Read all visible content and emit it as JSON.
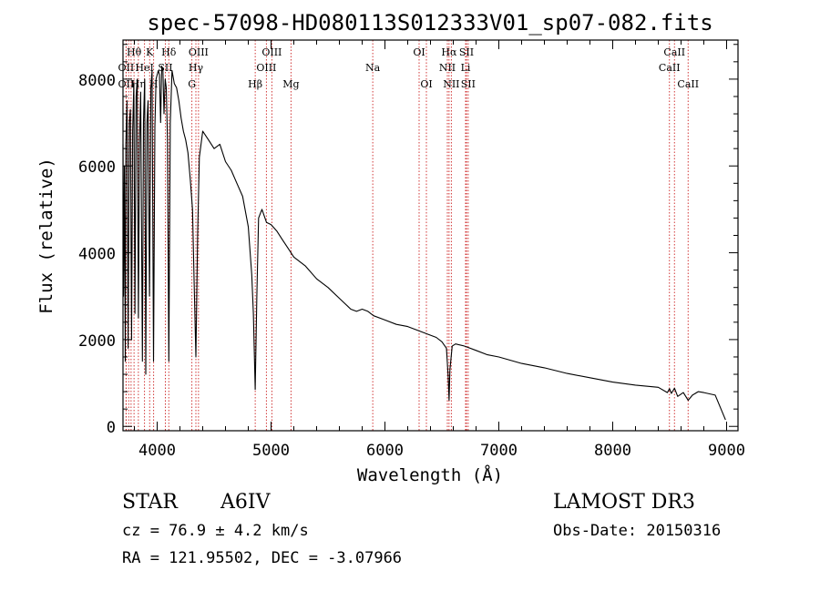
{
  "chart_data": {
    "type": "line",
    "title": "spec-57098-HD080113S012333V01_sp07-082.fits",
    "xlabel": "Wavelength (Å)",
    "ylabel": "Flux (relative)",
    "xlim": [
      3700,
      9100
    ],
    "ylim": [
      -100,
      8900
    ],
    "xticks": [
      4000,
      5000,
      6000,
      7000,
      8000,
      9000
    ],
    "yticks": [
      0,
      2000,
      4000,
      6000,
      8000
    ],
    "series": [
      {
        "name": "Flux",
        "x": [
          3700,
          3705,
          3712,
          3720,
          3725,
          3735,
          3745,
          3755,
          3765,
          3775,
          3785,
          3795,
          3805,
          3815,
          3825,
          3835,
          3845,
          3855,
          3870,
          3880,
          3890,
          3900,
          3910,
          3920,
          3933,
          3945,
          3955,
          3968,
          3980,
          3990,
          4000,
          4010,
          4020,
          4030,
          4040,
          4050,
          4060,
          4070,
          4080,
          4090,
          4102,
          4115,
          4130,
          4150,
          4170,
          4190,
          4210,
          4230,
          4250,
          4270,
          4290,
          4310,
          4325,
          4340,
          4355,
          4370,
          4400,
          4450,
          4500,
          4550,
          4600,
          4650,
          4700,
          4750,
          4800,
          4830,
          4845,
          4861,
          4875,
          4890,
          4920,
          4960,
          5000,
          5050,
          5100,
          5150,
          5200,
          5300,
          5400,
          5500,
          5600,
          5700,
          5750,
          5800,
          5850,
          5900,
          6000,
          6100,
          6200,
          6300,
          6400,
          6450,
          6500,
          6540,
          6555,
          6563,
          6570,
          6590,
          6620,
          6700,
          6800,
          6900,
          7000,
          7200,
          7400,
          7600,
          7800,
          8000,
          8200,
          8400,
          8480,
          8498,
          8515,
          8542,
          8570,
          8620,
          8662,
          8700,
          8750,
          8800,
          8900,
          8990
        ],
        "y": [
          6500,
          3000,
          6000,
          1500,
          6500,
          7500,
          1800,
          7000,
          7300,
          2000,
          6800,
          7900,
          2600,
          7600,
          8000,
          2500,
          6500,
          7700,
          1500,
          7000,
          8000,
          1200,
          7000,
          7500,
          3000,
          7800,
          8200,
          1500,
          6900,
          8000,
          8100,
          8200,
          8100,
          7000,
          8300,
          8200,
          7200,
          8000,
          7800,
          6600,
          1500,
          7000,
          8200,
          7900,
          7800,
          7500,
          7100,
          6800,
          6600,
          6300,
          5700,
          5000,
          3300,
          1600,
          4400,
          6200,
          6800,
          6600,
          6400,
          6500,
          6100,
          5900,
          5600,
          5300,
          4600,
          3500,
          2600,
          850,
          3000,
          4800,
          5000,
          4700,
          4650,
          4500,
          4300,
          4100,
          3900,
          3700,
          3400,
          3200,
          2950,
          2700,
          2650,
          2700,
          2650,
          2550,
          2450,
          2350,
          2300,
          2200,
          2100,
          2050,
          1950,
          1800,
          1150,
          600,
          1300,
          1850,
          1900,
          1850,
          1750,
          1650,
          1600,
          1450,
          1350,
          1220,
          1120,
          1020,
          950,
          900,
          780,
          870,
          760,
          880,
          690,
          780,
          600,
          720,
          800,
          780,
          720,
          150
        ]
      }
    ],
    "spectral_lines": [
      {
        "label": "Hθ",
        "wavelength": 3797,
        "row": 1
      },
      {
        "label": "OII",
        "wavelength": 3727,
        "row": 2
      },
      {
        "label": "OII",
        "wavelength": 3727,
        "row": 3
      },
      {
        "label": "Hη",
        "wavelength": 3835,
        "row": 3
      },
      {
        "label": "K",
        "wavelength": 3934,
        "row": 1
      },
      {
        "label": "H",
        "wavelength": 3969,
        "row": 3
      },
      {
        "label": "HeI",
        "wavelength": 3889,
        "row": 2
      },
      {
        "label": "SII",
        "wavelength": 4072,
        "row": 2
      },
      {
        "label": "Hδ",
        "wavelength": 4102,
        "row": 1
      },
      {
        "label": "OIII",
        "wavelength": 4363,
        "row": 1
      },
      {
        "label": "Hγ",
        "wavelength": 4340,
        "row": 2
      },
      {
        "label": "G",
        "wavelength": 4305,
        "row": 3
      },
      {
        "label": "Hβ",
        "wavelength": 4861,
        "row": 3
      },
      {
        "label": "OIII",
        "wavelength": 5007,
        "row": 1
      },
      {
        "label": "OIII",
        "wavelength": 4959,
        "row": 2
      },
      {
        "label": "Mg",
        "wavelength": 5175,
        "row": 3
      },
      {
        "label": "Na",
        "wavelength": 5893,
        "row": 2
      },
      {
        "label": "OI",
        "wavelength": 6300,
        "row": 1
      },
      {
        "label": "OI",
        "wavelength": 6364,
        "row": 3
      },
      {
        "label": "Hα",
        "wavelength": 6563,
        "row": 1
      },
      {
        "label": "SII",
        "wavelength": 6716,
        "row": 1
      },
      {
        "label": "NII",
        "wavelength": 6548,
        "row": 2
      },
      {
        "label": "Li",
        "wavelength": 6708,
        "row": 2
      },
      {
        "label": "NII",
        "wavelength": 6583,
        "row": 3
      },
      {
        "label": "SII",
        "wavelength": 6731,
        "row": 3
      },
      {
        "label": "CaII",
        "wavelength": 8542,
        "row": 1
      },
      {
        "label": "CaII",
        "wavelength": 8498,
        "row": 2
      },
      {
        "label": "CaII",
        "wavelength": 8662,
        "row": 3
      },
      {
        "label": "",
        "wavelength": 3750,
        "row": 0
      },
      {
        "label": "",
        "wavelength": 3771,
        "row": 0
      }
    ]
  },
  "info": {
    "class": "STAR",
    "subclass": "A6IV",
    "survey": "LAMOST DR3",
    "cz": "cz = 76.9 ± 4.2 km/s",
    "obs_date": "Obs-Date: 20150316",
    "coords": "RA = 121.95502, DEC =  -3.07966"
  },
  "colors": {
    "spectrum": "#000000",
    "line_marker": "#cc2222",
    "axes": "#000000"
  }
}
